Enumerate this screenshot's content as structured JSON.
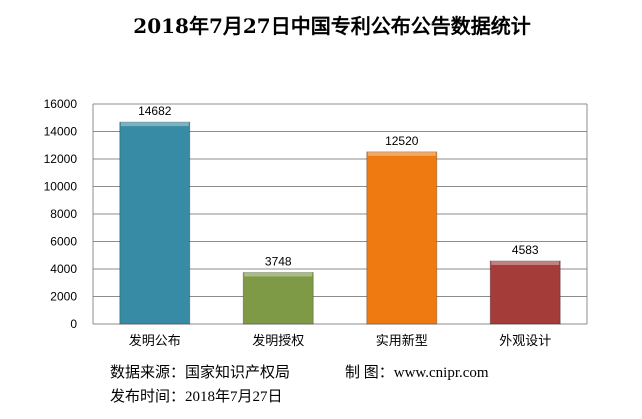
{
  "chart_data": {
    "type": "bar",
    "title": "2018年7月27日中国专利公布公告数据统计",
    "categories": [
      "发明公布",
      "发明授权",
      "实用新型",
      "外观设计"
    ],
    "values": [
      14682,
      3748,
      12520,
      4583
    ],
    "colors": [
      "#378ba5",
      "#7f9a46",
      "#f07a12",
      "#a43c3a"
    ],
    "ylim": [
      0,
      16000
    ],
    "yticks": [
      0,
      2000,
      4000,
      6000,
      8000,
      10000,
      12000,
      14000,
      16000
    ],
    "grid": true,
    "xlabel": "",
    "ylabel": ""
  },
  "notes": {
    "source": "数据来源：国家知识产权局",
    "maker": "制 图：www.cnipr.com",
    "date": "发布时间：2018年7月27日"
  }
}
